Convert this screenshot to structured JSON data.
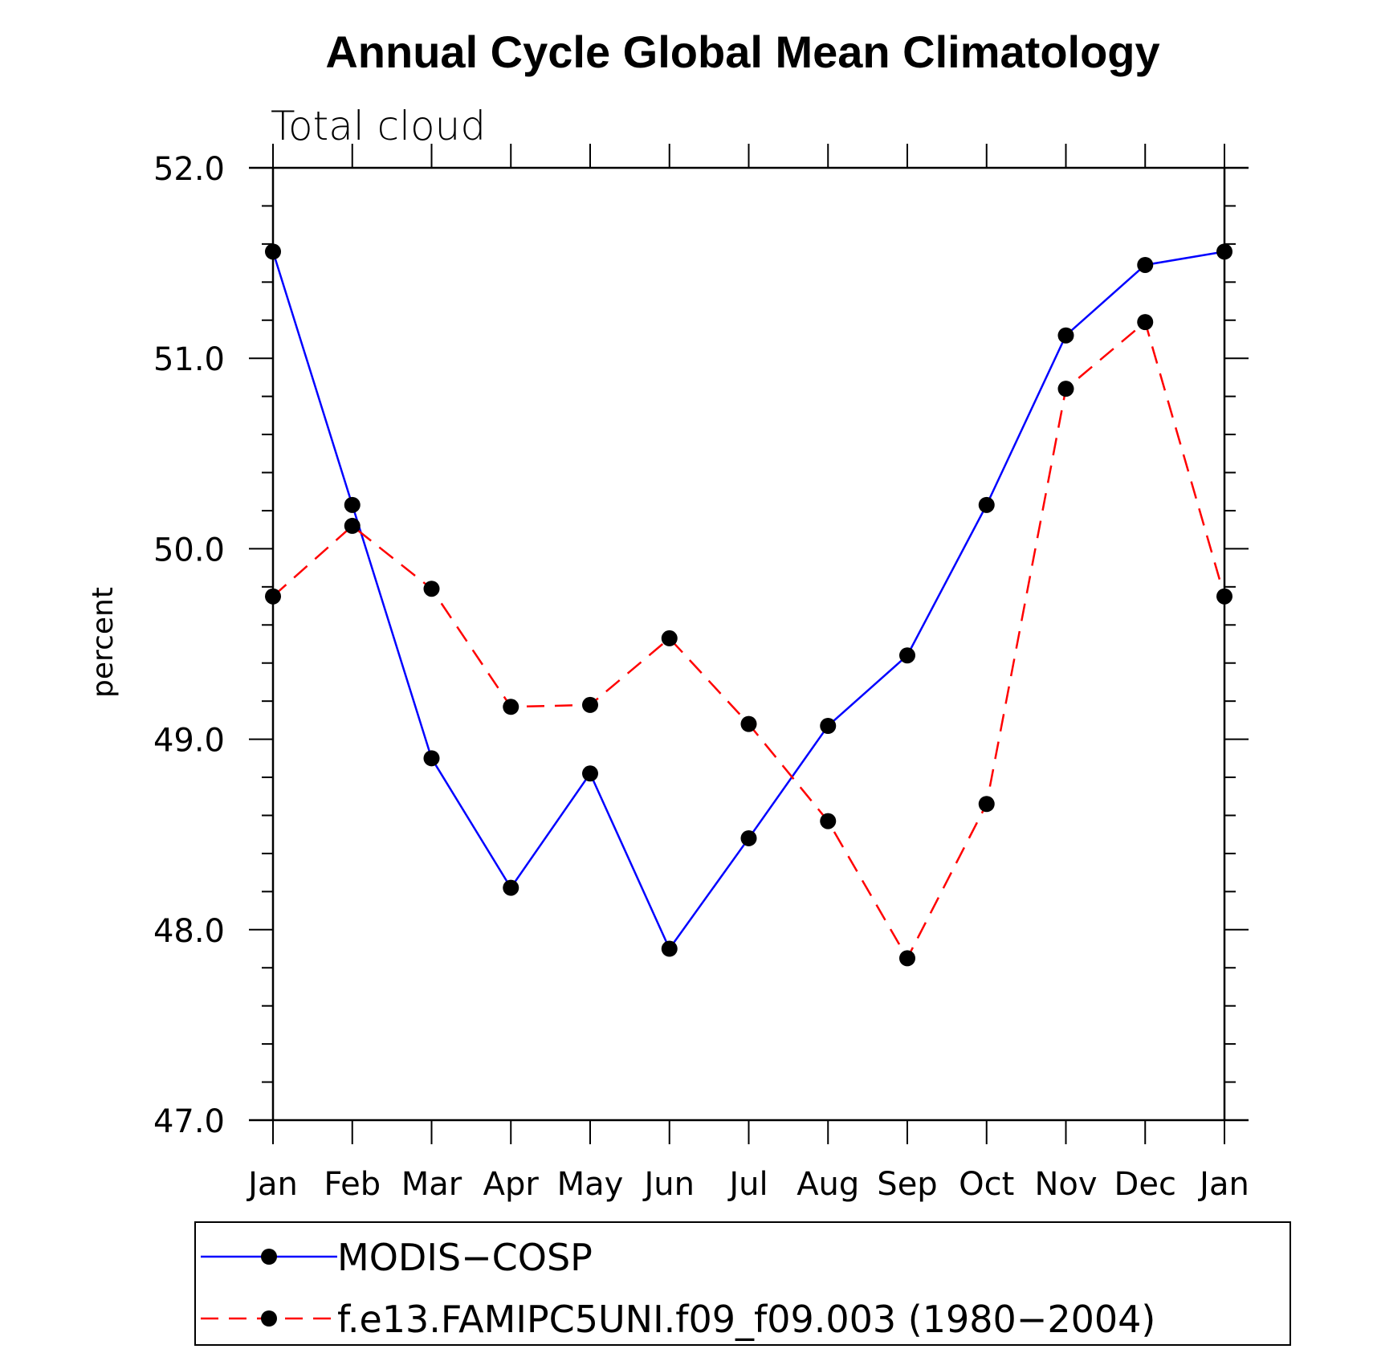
{
  "chart_data": {
    "type": "line",
    "title": "Annual Cycle Global Mean Climatology",
    "subtitle": "Total cloud",
    "xlabel": "",
    "ylabel": "percent",
    "categories": [
      "Jan",
      "Feb",
      "Mar",
      "Apr",
      "May",
      "Jun",
      "Jul",
      "Aug",
      "Sep",
      "Oct",
      "Nov",
      "Dec",
      "Jan"
    ],
    "ylim": [
      47.0,
      52.0
    ],
    "yticks": [
      "47.0",
      "48.0",
      "49.0",
      "50.0",
      "51.0",
      "52.0"
    ],
    "grid": false,
    "legend_position": "bottom",
    "series": [
      {
        "name": "MODIS−COSP",
        "color": "#0000ff",
        "line_style": "solid",
        "marker": "filled-circle",
        "values": [
          51.56,
          50.23,
          48.9,
          48.22,
          48.82,
          47.9,
          48.48,
          49.07,
          49.44,
          50.23,
          51.12,
          51.49,
          51.56
        ]
      },
      {
        "name": "f.e13.FAMIPC5UNI.f09_f09.003 (1980−2004)",
        "color": "#ff0000",
        "line_style": "dashed",
        "marker": "filled-circle",
        "values": [
          49.75,
          50.12,
          49.79,
          49.17,
          49.18,
          49.53,
          49.08,
          48.57,
          47.85,
          48.66,
          50.84,
          51.19,
          49.75
        ]
      }
    ]
  }
}
